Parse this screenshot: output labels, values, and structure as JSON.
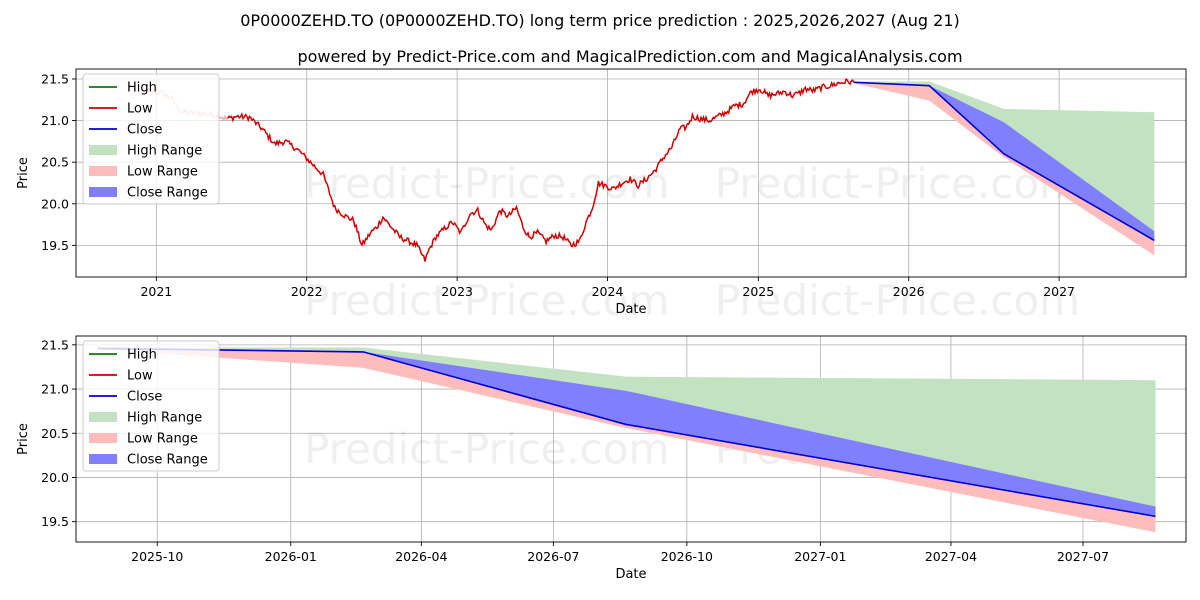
{
  "page": {
    "title": "0P0000ZEHD.TO (0P0000ZEHD.TO) long term price prediction : 2025,2026,2027 (Aug 21)",
    "subtitle": "powered by Predict-Price.com and MagicalPrediction.com and MagicalAnalysis.com",
    "watermark": "Predict-Price.com"
  },
  "colors": {
    "high": "#008000",
    "low": "#d00000",
    "close": "#0000d0",
    "high_range": "#c2e2c2",
    "low_range": "#ffbcbc",
    "close_range": "#8080ff"
  },
  "legend": {
    "high": "High",
    "low": "Low",
    "close": "Close",
    "high_range": "High Range",
    "low_range": "Low Range",
    "close_range": "Close Range"
  },
  "chart_data": [
    {
      "type": "line",
      "panel": "history",
      "xlabel": "Date",
      "ylabel": "Price",
      "xlim": [
        "2020-06-20",
        "2027-11-05"
      ],
      "ylim": [
        19.12,
        21.62
      ],
      "x_ticks": [
        "2021",
        "2022",
        "2023",
        "2024",
        "2025",
        "2026",
        "2027"
      ],
      "y_ticks": [
        "19.5",
        "20.0",
        "20.5",
        "21.0",
        "21.5"
      ],
      "grid": true,
      "legend_position": "upper left",
      "history_low": {
        "x": [
          "2020-11-20",
          "2020-12-20",
          "2021-01-20",
          "2021-02-10",
          "2021-03-01",
          "2021-04-01",
          "2021-05-01",
          "2021-06-01",
          "2021-06-20",
          "2021-07-15",
          "2021-08-15",
          "2021-09-15",
          "2021-10-15",
          "2021-11-10",
          "2021-12-10",
          "2022-01-10",
          "2022-02-10",
          "2022-03-10",
          "2022-04-05",
          "2022-04-25",
          "2022-05-15",
          "2022-06-05",
          "2022-06-20",
          "2022-07-05",
          "2022-07-25",
          "2022-08-15",
          "2022-09-05",
          "2022-09-25",
          "2022-10-15",
          "2022-10-25",
          "2022-11-10",
          "2022-12-01",
          "2022-12-20",
          "2023-01-10",
          "2023-02-01",
          "2023-02-20",
          "2023-03-10",
          "2023-03-25",
          "2023-04-15",
          "2023-05-05",
          "2023-05-25",
          "2023-06-10",
          "2023-06-25",
          "2023-07-15",
          "2023-08-05",
          "2023-08-25",
          "2023-09-15",
          "2023-10-05",
          "2023-10-25",
          "2023-11-10",
          "2023-11-25",
          "2023-12-10",
          "2023-12-25",
          "2024-01-15",
          "2024-02-05",
          "2024-02-25",
          "2024-03-15",
          "2024-04-05",
          "2024-04-25",
          "2024-05-15",
          "2024-06-05",
          "2024-06-25",
          "2024-07-10",
          "2024-07-25",
          "2024-08-15",
          "2024-09-05",
          "2024-09-25",
          "2024-10-15",
          "2024-11-05",
          "2024-11-25",
          "2024-12-15",
          "2025-01-05",
          "2025-01-25",
          "2025-02-15",
          "2025-03-05",
          "2025-03-25",
          "2025-04-10",
          "2025-04-25",
          "2025-05-15",
          "2025-06-05",
          "2025-06-25",
          "2025-07-15",
          "2025-08-05",
          "2025-08-21"
        ],
        "y": [
          21.33,
          21.36,
          21.32,
          21.25,
          21.1,
          21.09,
          21.08,
          21.06,
          21.02,
          21.05,
          21.04,
          20.9,
          20.72,
          20.75,
          20.65,
          20.5,
          20.35,
          19.95,
          19.85,
          19.8,
          19.5,
          19.65,
          19.72,
          19.84,
          19.72,
          19.6,
          19.55,
          19.5,
          19.32,
          19.45,
          19.6,
          19.7,
          19.78,
          19.65,
          19.88,
          19.92,
          19.75,
          19.68,
          19.92,
          19.85,
          19.95,
          19.72,
          19.6,
          19.65,
          19.55,
          19.62,
          19.6,
          19.5,
          19.55,
          19.78,
          19.95,
          20.25,
          20.22,
          20.18,
          20.25,
          20.3,
          20.22,
          20.3,
          20.4,
          20.55,
          20.68,
          20.9,
          20.92,
          21.05,
          21.02,
          21.0,
          21.05,
          21.1,
          21.18,
          21.2,
          21.35,
          21.38,
          21.3,
          21.32,
          21.35,
          21.3,
          21.33,
          21.38,
          21.36,
          21.4,
          21.42,
          21.45,
          21.47,
          21.46
        ]
      },
      "forecast": {
        "x": [
          "2025-08-21",
          "2026-02-20",
          "2026-08-20",
          "2027-08-20"
        ],
        "close": [
          21.46,
          21.42,
          20.6,
          19.56
        ],
        "high": [
          21.47,
          21.47,
          21.14,
          21.1
        ],
        "low": [
          21.45,
          21.24,
          20.56,
          19.38
        ],
        "close_upper": [
          21.46,
          21.42,
          20.98,
          19.67
        ]
      }
    },
    {
      "type": "area",
      "panel": "forecast",
      "xlabel": "Date",
      "ylabel": "Price",
      "xlim": [
        "2025-08-06",
        "2027-09-10"
      ],
      "ylim": [
        19.27,
        21.6
      ],
      "x_ticks": [
        "2025-10",
        "2026-01",
        "2026-04",
        "2026-07",
        "2026-10",
        "2027-01",
        "2027-04",
        "2027-07"
      ],
      "y_ticks": [
        "19.5",
        "20.0",
        "20.5",
        "21.0",
        "21.5"
      ],
      "grid": true,
      "legend_position": "upper left"
    }
  ]
}
